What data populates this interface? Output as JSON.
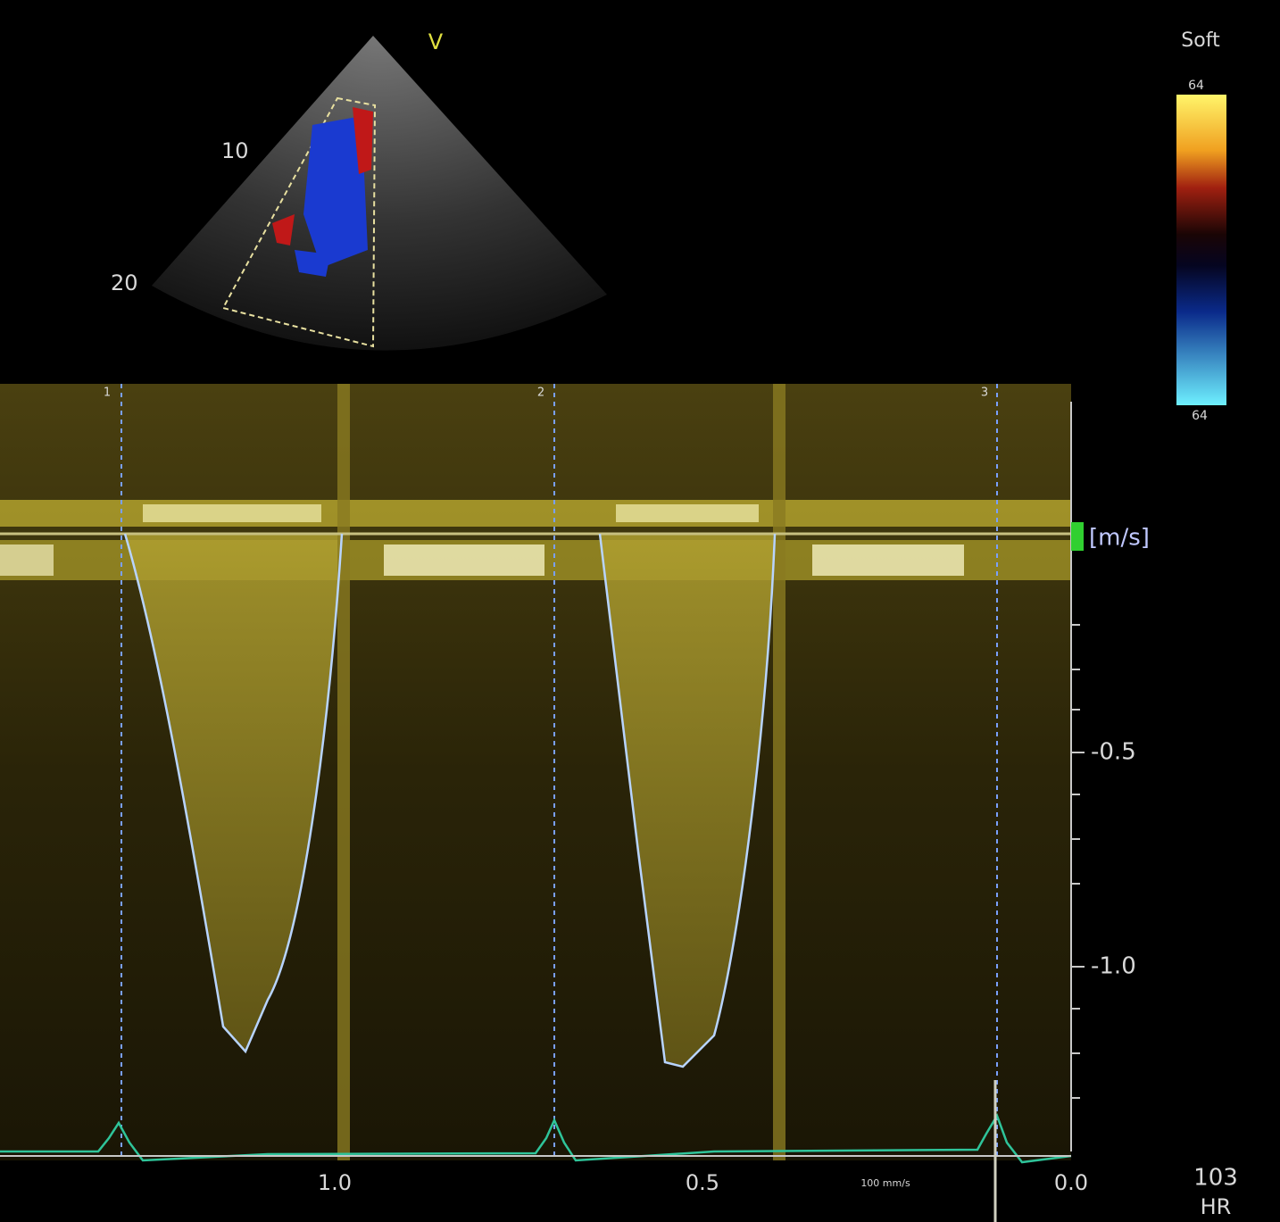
{
  "sector": {
    "label": "V",
    "depth_labels": [
      "10",
      "20"
    ]
  },
  "color_bar": {
    "title": "Soft",
    "max_label": "64",
    "min_label": "64"
  },
  "doppler": {
    "beat_markers": [
      "1",
      "2",
      "3"
    ],
    "unit": "[m/s]",
    "velocity_labels": [
      "-0.5",
      "-1.0"
    ],
    "time_labels": [
      "1.0",
      "0.5",
      "0.0"
    ],
    "sweep": "100 mm/s"
  },
  "heart_rate": {
    "value": "103",
    "label": "HR"
  }
}
